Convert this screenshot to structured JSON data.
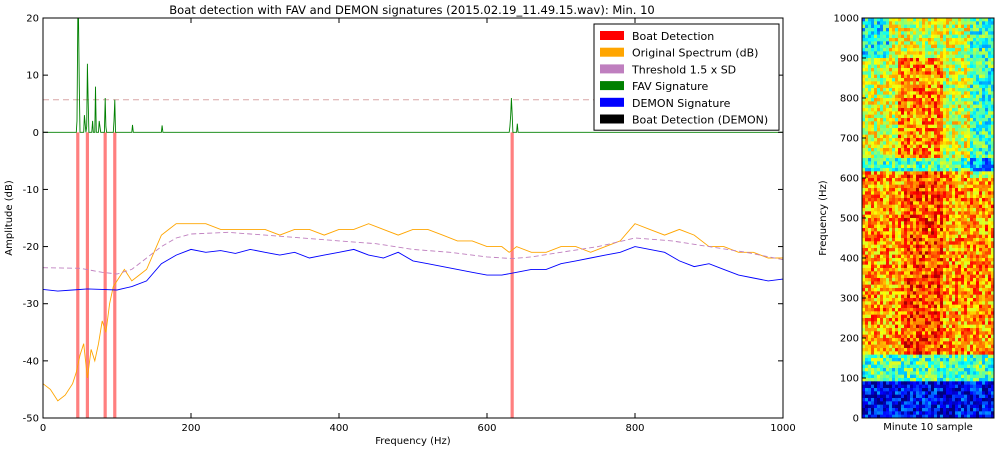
{
  "chart_data": [
    {
      "type": "line",
      "title": "Boat detection with FAV and DEMON signatures (2015.02.19_11.49.15.wav): Min. 10",
      "xlabel": "Frequency (Hz)",
      "ylabel": "Amplitude (dB)",
      "xlim": [
        0,
        1000
      ],
      "ylim": [
        -50,
        20
      ],
      "xticks": [
        0,
        200,
        400,
        600,
        800,
        1000
      ],
      "yticks": [
        -50,
        -40,
        -30,
        -20,
        -10,
        0,
        10,
        20
      ],
      "grid": false,
      "legend_position": "top-right",
      "legend": [
        {
          "label": "Boat Detection",
          "color": "#ff0000"
        },
        {
          "label": "Original Spectrum (dB)",
          "color": "#ffa500"
        },
        {
          "label": "Threshold 1.5 x SD",
          "color": "#bf7fbf"
        },
        {
          "label": "FAV Signature",
          "color": "#008000"
        },
        {
          "label": "DEMON Signature",
          "color": "#0000ff"
        },
        {
          "label": "Boat Detection (DEMON)",
          "color": "#000000"
        }
      ],
      "boat_detections_hz": [
        47,
        60,
        84,
        97,
        634
      ],
      "fav_threshold_db": 5.7,
      "series": [
        {
          "name": "Original Spectrum (dB)",
          "color": "#ffa500",
          "x": [
            0,
            10,
            20,
            30,
            40,
            45,
            50,
            55,
            60,
            65,
            70,
            75,
            80,
            85,
            90,
            95,
            100,
            110,
            120,
            130,
            140,
            150,
            160,
            170,
            180,
            200,
            220,
            240,
            260,
            280,
            300,
            320,
            340,
            360,
            380,
            400,
            420,
            440,
            460,
            480,
            500,
            520,
            540,
            560,
            580,
            600,
            620,
            630,
            640,
            660,
            680,
            700,
            720,
            740,
            760,
            780,
            800,
            820,
            840,
            860,
            880,
            900,
            920,
            940,
            960,
            980,
            1000
          ],
          "y": [
            -44,
            -45,
            -47,
            -46,
            -44,
            -42,
            -39,
            -37,
            -43,
            -38,
            -40,
            -37,
            -33,
            -35,
            -30,
            -27,
            -26,
            -24,
            -26,
            -25,
            -24,
            -21,
            -18,
            -17,
            -16,
            -16,
            -16,
            -17,
            -17,
            -17,
            -17,
            -18,
            -17,
            -17,
            -18,
            -17,
            -17,
            -16,
            -17,
            -18,
            -17,
            -17,
            -18,
            -19,
            -19,
            -20,
            -20,
            -21,
            -20,
            -21,
            -21,
            -20,
            -20,
            -21,
            -20,
            -19,
            -16,
            -17,
            -18,
            -17,
            -18,
            -20,
            -20,
            -21,
            -21,
            -22,
            -22
          ]
        },
        {
          "name": "Threshold 1.5 x SD",
          "color": "#bf7fbf",
          "x": [
            0,
            50,
            80,
            100,
            120,
            140,
            160,
            180,
            200,
            250,
            300,
            350,
            400,
            450,
            500,
            550,
            600,
            634,
            660,
            700,
            750,
            800,
            850,
            900,
            950,
            1000
          ],
          "y": [
            -23.7,
            -23.8,
            -24.5,
            -24.8,
            -24.0,
            -22.0,
            -20.0,
            -18.5,
            -17.8,
            -17.5,
            -18.0,
            -18.5,
            -19.0,
            -19.5,
            -20.5,
            -21.0,
            -21.8,
            -22.1,
            -21.8,
            -21.0,
            -20.0,
            -18.5,
            -19.0,
            -20.0,
            -21.0,
            -22.3
          ]
        },
        {
          "name": "FAV Signature",
          "color": "#008000",
          "x": [
            0,
            45,
            46,
            47,
            48,
            49,
            50,
            55,
            56,
            58,
            59,
            60,
            61,
            62,
            63,
            66,
            67,
            68,
            70,
            71,
            72,
            75,
            76,
            78,
            83,
            84,
            85,
            86,
            88,
            95,
            96,
            97,
            98,
            99,
            120,
            121,
            122,
            160,
            161,
            162,
            630,
            631,
            632,
            633,
            634,
            635,
            636,
            640,
            641,
            642,
            1000
          ],
          "y": [
            0,
            0,
            2,
            20,
            20,
            8,
            0,
            0,
            3,
            0,
            1,
            12,
            6,
            0,
            0,
            0,
            2,
            0,
            0,
            8,
            0,
            0,
            2,
            0,
            0,
            6,
            1,
            0,
            0,
            0,
            2,
            5.7,
            0,
            0,
            0,
            1.3,
            0,
            0,
            1.2,
            0,
            0,
            1,
            3,
            6,
            3,
            0,
            0,
            0,
            1.5,
            0,
            0
          ]
        },
        {
          "name": "DEMON Signature",
          "color": "#0000ff",
          "x": [
            0,
            20,
            40,
            60,
            80,
            100,
            120,
            140,
            160,
            180,
            200,
            220,
            240,
            260,
            280,
            300,
            320,
            340,
            360,
            380,
            400,
            420,
            440,
            460,
            480,
            500,
            520,
            540,
            560,
            580,
            600,
            620,
            640,
            660,
            680,
            700,
            720,
            740,
            760,
            780,
            800,
            820,
            840,
            860,
            880,
            900,
            920,
            940,
            960,
            980,
            1000
          ],
          "y": [
            -27.5,
            -27.8,
            -27.6,
            -27.4,
            -27.5,
            -27.6,
            -27.0,
            -26.0,
            -23.0,
            -21.5,
            -20.5,
            -21.0,
            -20.7,
            -21.2,
            -20.5,
            -21.0,
            -21.5,
            -21.0,
            -22.0,
            -21.5,
            -21.0,
            -20.5,
            -21.5,
            -22.0,
            -21.0,
            -22.5,
            -23.0,
            -23.5,
            -24.0,
            -24.5,
            -25.0,
            -25.0,
            -24.5,
            -24.0,
            -24.0,
            -23.0,
            -22.5,
            -22.0,
            -21.5,
            -21.0,
            -20.0,
            -20.5,
            -21.0,
            -22.5,
            -23.5,
            -23.0,
            -24.0,
            -25.0,
            -25.5,
            -26.0,
            -25.7
          ]
        }
      ]
    },
    {
      "type": "heatmap",
      "title": "",
      "xlabel": "Minute 10 sample",
      "ylabel": "Frequency (Hz)",
      "ylim": [
        0,
        1000
      ],
      "yticks": [
        0,
        100,
        200,
        300,
        400,
        500,
        600,
        700,
        800,
        900,
        1000
      ],
      "colormap": "jet"
    }
  ]
}
